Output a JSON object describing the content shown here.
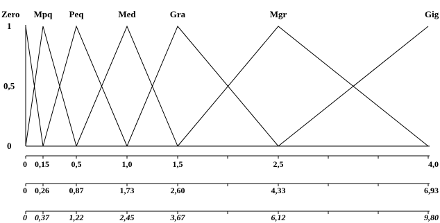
{
  "chart_data": {
    "type": "line",
    "series": [
      {
        "name": "Zero",
        "x": [
          0,
          0,
          0.15
        ],
        "y": [
          0,
          1,
          0
        ]
      },
      {
        "name": "Mpq",
        "x": [
          0,
          0.15,
          0.5
        ],
        "y": [
          0,
          1,
          0
        ]
      },
      {
        "name": "Peq",
        "x": [
          0.15,
          0.5,
          1.0
        ],
        "y": [
          0,
          1,
          0
        ]
      },
      {
        "name": "Med",
        "x": [
          0.5,
          1.0,
          1.5
        ],
        "y": [
          0,
          1,
          0
        ]
      },
      {
        "name": "Gra",
        "x": [
          1.0,
          1.5,
          2.5
        ],
        "y": [
          0,
          1,
          0
        ]
      },
      {
        "name": "Mgr",
        "x": [
          1.5,
          2.5,
          4.0
        ],
        "y": [
          0,
          1,
          0
        ]
      },
      {
        "name": "Gig",
        "x": [
          2.5,
          4.0,
          4.0
        ],
        "y": [
          0,
          1,
          1
        ]
      }
    ],
    "y_ticks": [
      "1",
      "0,5",
      "0"
    ],
    "ylim": [
      0,
      1
    ],
    "xlim": [
      0,
      4.0
    ],
    "x_axes": [
      {
        "values": [
          0,
          0.15,
          0.5,
          1.0,
          1.5,
          2.5,
          4.0
        ],
        "labels": [
          "0",
          "0,15",
          "0,5",
          "1,0",
          "1,5",
          "2,5",
          "4,0"
        ],
        "italic": false
      },
      {
        "values": [
          0,
          0.15,
          0.5,
          1.0,
          1.5,
          2.5,
          4.0
        ],
        "labels": [
          "0",
          "0,26",
          "0,87",
          "1,73",
          "2,60",
          "4,33",
          "6,93"
        ],
        "italic": false
      },
      {
        "values": [
          0,
          0.15,
          0.5,
          1.0,
          1.5,
          2.5,
          4.0
        ],
        "labels": [
          "0",
          "0,37",
          "1,22",
          "2,45",
          "3,67",
          "6,12",
          "9,80"
        ],
        "italic": true
      }
    ],
    "minor_ticks": [
      2.0,
      3.0,
      3.5
    ],
    "grid": false,
    "title": "",
    "xlabel": "",
    "ylabel": ""
  }
}
